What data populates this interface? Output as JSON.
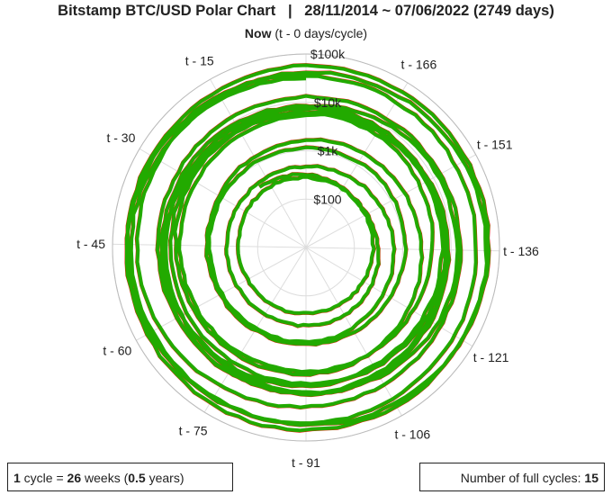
{
  "title": "Bitstamp BTC/USD Polar Chart   |   28/11/2014 ~ 07/06/2022 (2749 days)",
  "now_label": {
    "bold": "Now",
    "rest": " (t - 0 days/cycle)"
  },
  "info_box": {
    "count": "1",
    "cycle_text": " cycle = ",
    "weeks": "26",
    "weeks_text": " weeks (",
    "years": "0.5",
    "years_text": " years)"
  },
  "cycles_box": {
    "label": "Number of full cycles: ",
    "value": "15"
  },
  "colors": {
    "up": "#22aa00",
    "down": "#ee1100",
    "grid": "#dddddd"
  },
  "chart_data": {
    "type": "line",
    "projection": "polar",
    "title": "Bitstamp BTC/USD Polar Chart   |   28/11/2014 ~ 07/06/2022 (2749 days)",
    "cycle_days": 182,
    "radial_scale": "log",
    "radial_range": [
      10,
      100000
    ],
    "radial_ticks": [
      {
        "value": 100,
        "label": "$100"
      },
      {
        "value": 1000,
        "label": "$1k"
      },
      {
        "value": 10000,
        "label": "$10k"
      },
      {
        "value": 100000,
        "label": "$100k"
      }
    ],
    "angular_ticks": [
      {
        "days": 0,
        "label": "Now (t - 0 days/cycle)"
      },
      {
        "days": 15,
        "label": "t - 15"
      },
      {
        "days": 30,
        "label": "t - 30"
      },
      {
        "days": 45,
        "label": "t - 45"
      },
      {
        "days": 60,
        "label": "t - 60"
      },
      {
        "days": 75,
        "label": "t - 75"
      },
      {
        "days": 91,
        "label": "t - 91"
      },
      {
        "days": 106,
        "label": "t - 106"
      },
      {
        "days": 121,
        "label": "t - 121"
      },
      {
        "days": 136,
        "label": "t - 136"
      },
      {
        "days": 151,
        "label": "t - 151"
      },
      {
        "days": 166,
        "label": "t - 166"
      }
    ],
    "series": [
      {
        "values": [
          [
            2749,
            376
          ],
          [
            2700,
            250
          ],
          [
            2650,
            230
          ],
          [
            2600,
            240
          ],
          [
            2567,
            290
          ],
          [
            2520,
            260
          ],
          [
            2480,
            400
          ],
          [
            2440,
            420
          ],
          [
            2400,
            430
          ],
          [
            2360,
            480
          ],
          [
            2320,
            650
          ],
          [
            2280,
            900
          ],
          [
            2240,
            950
          ],
          [
            2200,
            1100
          ],
          [
            2160,
            1200
          ],
          [
            2120,
            1050
          ],
          [
            2080,
            1000
          ],
          [
            2040,
            1150
          ],
          [
            2000,
            1700
          ],
          [
            1960,
            2300
          ],
          [
            1920,
            4000
          ],
          [
            1880,
            4500
          ],
          [
            1840,
            6000
          ],
          [
            1800,
            12000
          ],
          [
            1760,
            14000
          ],
          [
            1720,
            9000
          ],
          [
            1680,
            8000
          ],
          [
            1640,
            7500
          ],
          [
            1600,
            6500
          ],
          [
            1560,
            6600
          ],
          [
            1520,
            6400
          ],
          [
            1480,
            6300
          ],
          [
            1440,
            5600
          ],
          [
            1400,
            3700
          ],
          [
            1360,
            3600
          ],
          [
            1320,
            4000
          ],
          [
            1280,
            5200
          ],
          [
            1240,
            8000
          ],
          [
            1200,
            11000
          ],
          [
            1160,
            10500
          ],
          [
            1120,
            9000
          ],
          [
            1080,
            8000
          ],
          [
            1040,
            7500
          ],
          [
            1000,
            7200
          ],
          [
            960,
            9000
          ],
          [
            920,
            6000
          ],
          [
            880,
            7000
          ],
          [
            840,
            9500
          ],
          [
            800,
            11000
          ],
          [
            760,
            11500
          ],
          [
            720,
            13500
          ],
          [
            680,
            15500
          ],
          [
            640,
            19000
          ],
          [
            600,
            29000
          ],
          [
            560,
            38000
          ],
          [
            520,
            50000
          ],
          [
            480,
            58000
          ],
          [
            440,
            60000
          ],
          [
            400,
            48000
          ],
          [
            360,
            35000
          ],
          [
            320,
            33000
          ],
          [
            280,
            42000
          ],
          [
            240,
            48000
          ],
          [
            200,
            52000
          ],
          [
            160,
            62000
          ],
          [
            120,
            57000
          ],
          [
            80,
            43000
          ],
          [
            40,
            41000
          ],
          [
            0,
            31000
          ]
        ]
      }
    ]
  }
}
